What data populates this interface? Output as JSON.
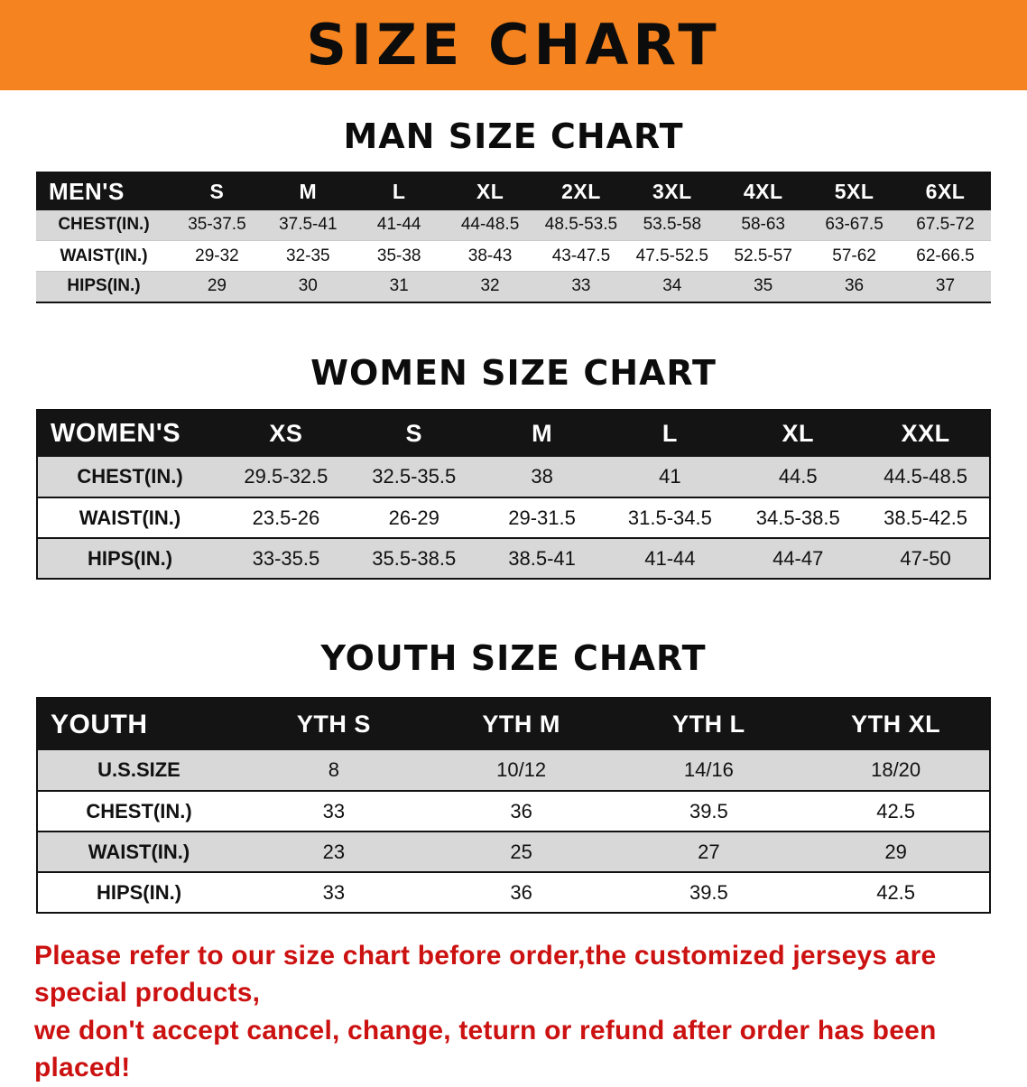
{
  "banner": {
    "title": "SIZE CHART"
  },
  "colors": {
    "banner_bg": "#F5831F",
    "header_bg": "#141414",
    "row_gray": "#D8D8D8",
    "disclaimer_red": "#CC1111"
  },
  "men": {
    "heading": "MAN SIZE CHART",
    "table": {
      "header": [
        "MEN'S",
        "S",
        "M",
        "L",
        "XL",
        "2XL",
        "3XL",
        "4XL",
        "5XL",
        "6XL"
      ],
      "rows": [
        [
          "CHEST(IN.)",
          "35-37.5",
          "37.5-41",
          "41-44",
          "44-48.5",
          "48.5-53.5",
          "53.5-58",
          "58-63",
          "63-67.5",
          "67.5-72"
        ],
        [
          "WAIST(IN.)",
          "29-32",
          "32-35",
          "35-38",
          "38-43",
          "43-47.5",
          "47.5-52.5",
          "52.5-57",
          "57-62",
          "62-66.5"
        ],
        [
          "HIPS(IN.)",
          "29",
          "30",
          "31",
          "32",
          "33",
          "34",
          "35",
          "36",
          "37"
        ]
      ]
    }
  },
  "women": {
    "heading": "WOMEN SIZE CHART",
    "table": {
      "header": [
        "WOMEN'S",
        "XS",
        "S",
        "M",
        "L",
        "XL",
        "XXL"
      ],
      "rows": [
        [
          "CHEST(IN.)",
          "29.5-32.5",
          "32.5-35.5",
          "38",
          "41",
          "44.5",
          "44.5-48.5"
        ],
        [
          "WAIST(IN.)",
          "23.5-26",
          "26-29",
          "29-31.5",
          "31.5-34.5",
          "34.5-38.5",
          "38.5-42.5"
        ],
        [
          "HIPS(IN.)",
          "33-35.5",
          "35.5-38.5",
          "38.5-41",
          "41-44",
          "44-47",
          "47-50"
        ]
      ]
    }
  },
  "youth": {
    "heading": "YOUTH SIZE CHART",
    "table": {
      "header": [
        "YOUTH",
        "YTH S",
        "YTH M",
        "YTH L",
        "YTH XL"
      ],
      "rows": [
        [
          "U.S.SIZE",
          "8",
          "10/12",
          "14/16",
          "18/20"
        ],
        [
          "CHEST(IN.)",
          "33",
          "36",
          "39.5",
          "42.5"
        ],
        [
          "WAIST(IN.)",
          "23",
          "25",
          "27",
          "29"
        ],
        [
          "HIPS(IN.)",
          "33",
          "36",
          "39.5",
          "42.5"
        ]
      ]
    }
  },
  "disclaimer": {
    "line1": "Please refer to our size chart before order,the customized jerseys are special products,",
    "line2": "we don't accept cancel, change, teturn or refund after order has been placed!"
  }
}
